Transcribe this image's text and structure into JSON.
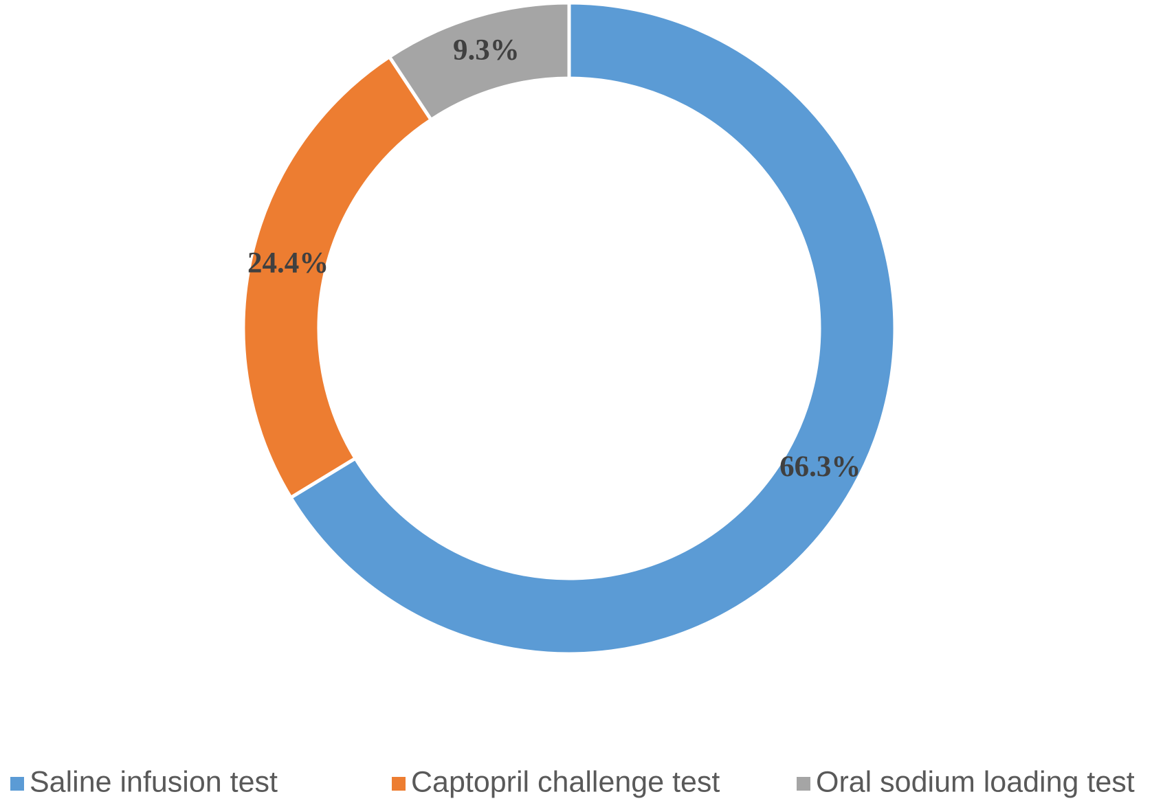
{
  "chart_data": {
    "type": "donut",
    "categories": [
      "Saline infusion test",
      "Captopril challenge test",
      "Oral sodium loading test"
    ],
    "values": [
      66.3,
      24.4,
      9.3
    ],
    "value_labels": [
      "66.3%",
      "24.4%",
      "9.3%"
    ],
    "colors": [
      "#5b9bd5",
      "#ed7d31",
      "#a5a5a5"
    ],
    "legend": "bottom"
  }
}
